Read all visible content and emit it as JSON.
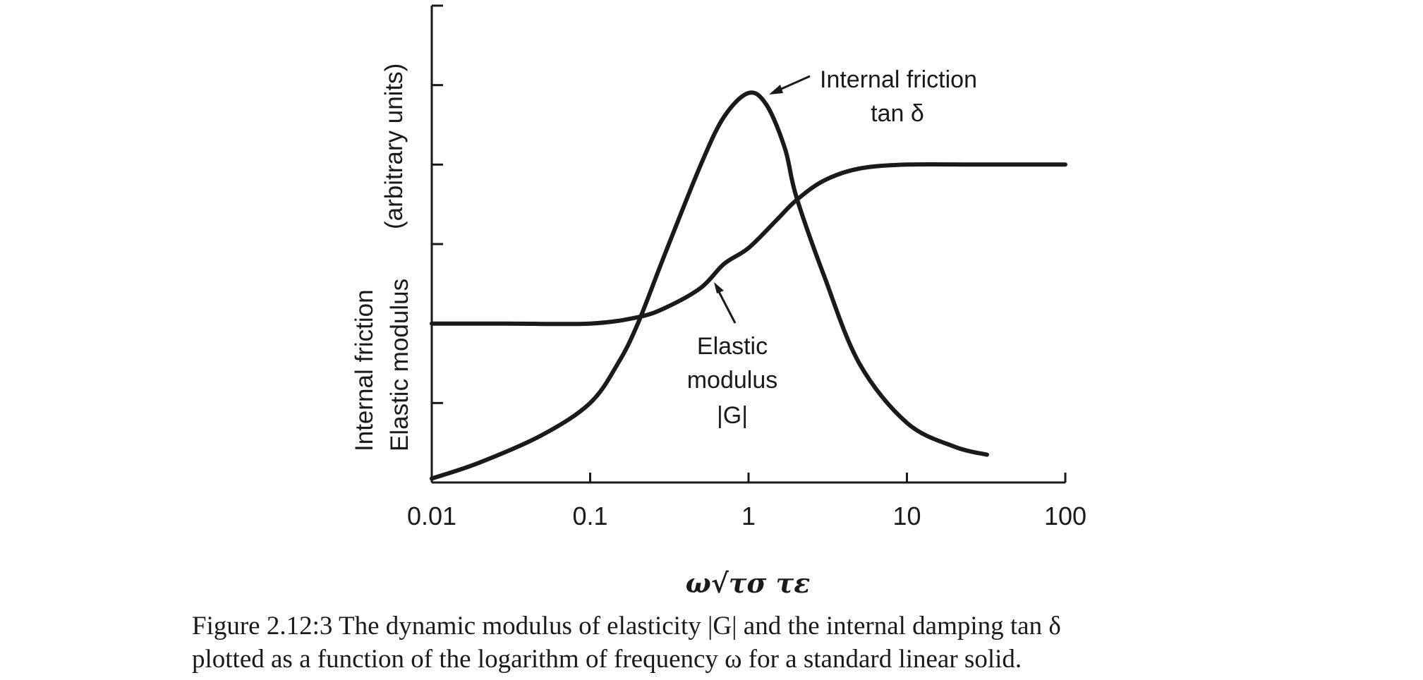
{
  "chart_data": {
    "type": "line",
    "x_scale": "log",
    "xlim": [
      0.01,
      100
    ],
    "x_ticks": [
      "0.01",
      "0.1",
      "1",
      "10",
      "100"
    ],
    "xlabel": "ω√τσ τε",
    "ylabel_lines": [
      "Internal friction",
      "Elastic modulus",
      "(arbitrary units)"
    ],
    "ylim": [
      0,
      6
    ],
    "y_ticks": [
      1,
      2,
      3,
      4,
      5,
      6
    ],
    "y_tick_labels_shown": false,
    "grid": false,
    "legend": "none",
    "series": [
      {
        "key": "tan_delta",
        "x": [
          0.01,
          0.02,
          0.05,
          0.1,
          0.15,
          0.2,
          0.3,
          0.5,
          0.7,
          1.0,
          1.3,
          1.7,
          2.0,
          3.0,
          5.0,
          10,
          20,
          32
        ],
        "y": [
          0.05,
          0.25,
          0.6,
          1.0,
          1.5,
          2.0,
          2.9,
          4.0,
          4.6,
          4.9,
          4.75,
          4.2,
          3.6,
          2.6,
          1.5,
          0.75,
          0.45,
          0.35
        ]
      },
      {
        "key": "G",
        "x": [
          0.01,
          0.03,
          0.1,
          0.2,
          0.3,
          0.5,
          0.7,
          1.0,
          1.5,
          2.0,
          3.0,
          5.0,
          10,
          30,
          100
        ],
        "y": [
          2.0,
          2.0,
          2.0,
          2.08,
          2.2,
          2.45,
          2.75,
          2.95,
          3.3,
          3.55,
          3.8,
          3.95,
          4.0,
          4.0,
          4.0
        ]
      }
    ],
    "annotations": [
      {
        "lines": [
          "Internal friction",
          "tan δ"
        ],
        "points_to": {
          "x": 1.05,
          "y": 4.9
        }
      },
      {
        "lines": [
          "Elastic",
          "modulus",
          "|G|"
        ],
        "points_to": {
          "x": 0.55,
          "y": 2.5
        }
      }
    ]
  },
  "caption": {
    "line1": "Figure 2.12:3  The dynamic modulus of elasticity |G| and the internal damping tan δ",
    "line2": "plotted as a function of the logarithm of frequency ω for a standard linear solid."
  }
}
